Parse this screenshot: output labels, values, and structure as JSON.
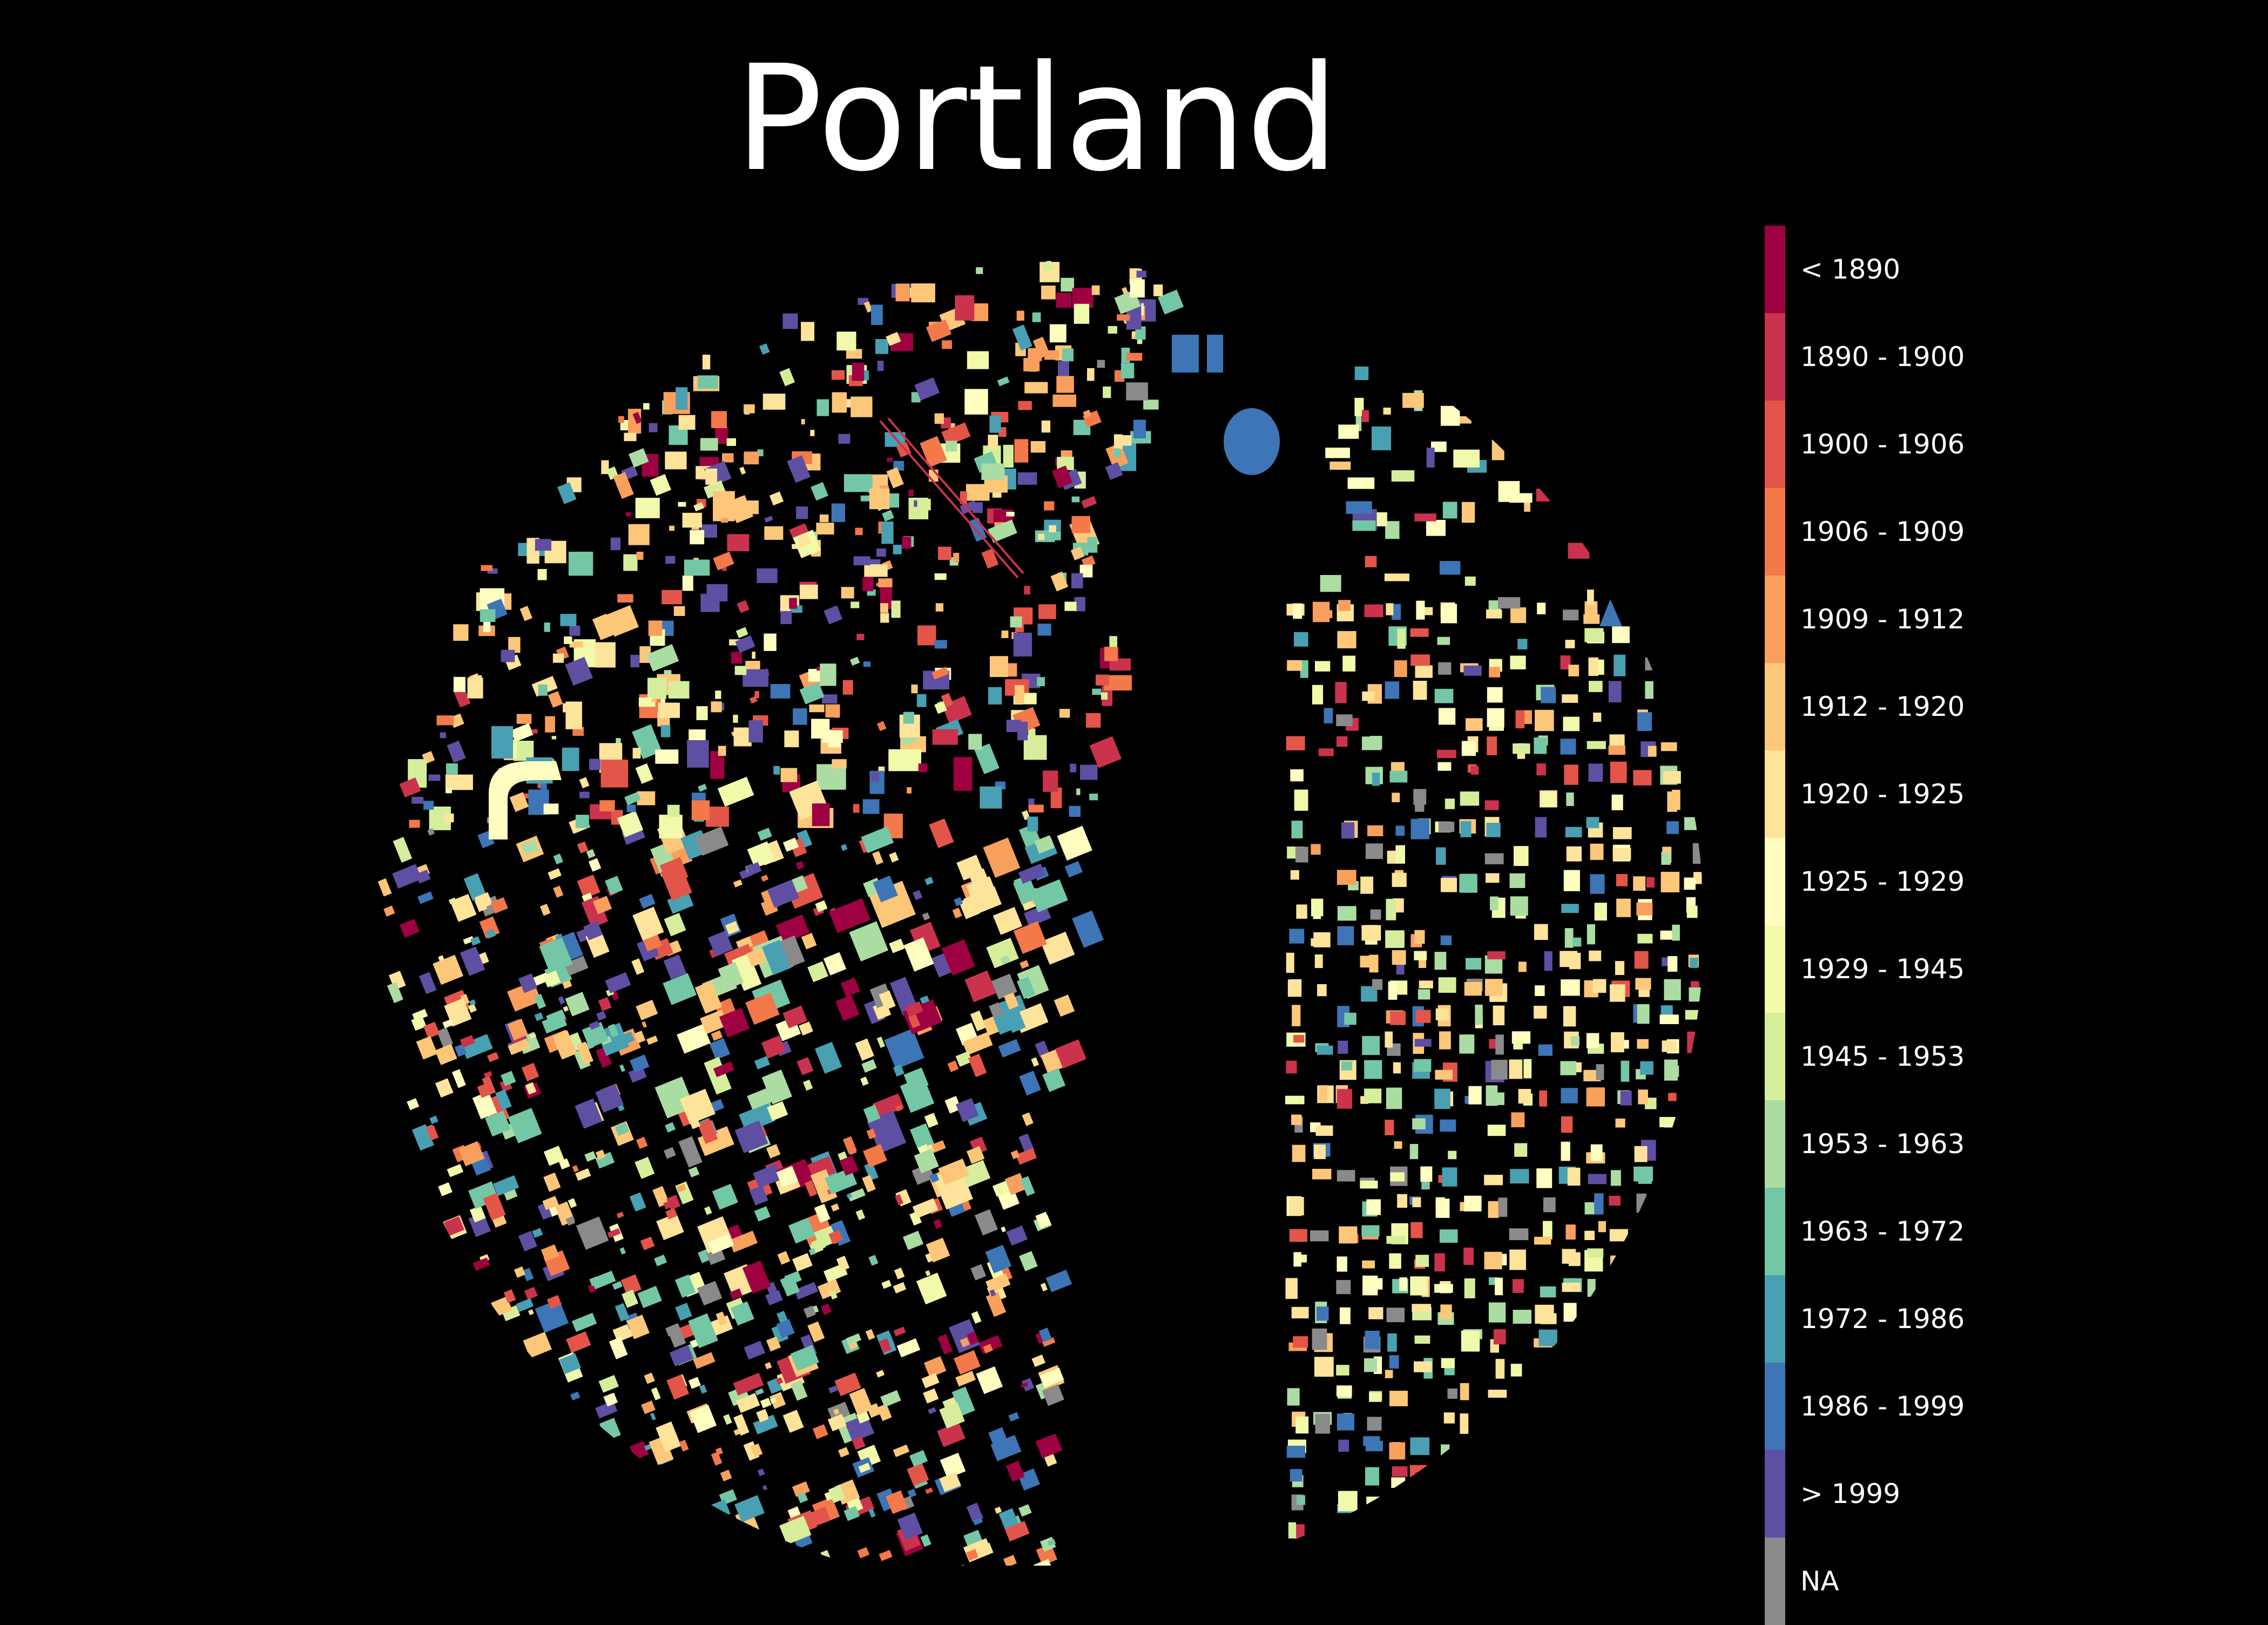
{
  "title": "Portland",
  "map": {
    "background": "#000000",
    "legend_placement": "right",
    "legend": [
      {
        "label": "< 1890",
        "color": "#9e0142"
      },
      {
        "label": "1890 - 1900",
        "color": "#cb334c"
      },
      {
        "label": "1900 - 1906",
        "color": "#e45549"
      },
      {
        "label": "1906 - 1909",
        "color": "#f3784a"
      },
      {
        "label": "1909 - 1912",
        "color": "#f99f5c"
      },
      {
        "label": "1912 - 1920",
        "color": "#fdc779"
      },
      {
        "label": "1920 - 1925",
        "color": "#fee49a"
      },
      {
        "label": "1925 - 1929",
        "color": "#fffdbf"
      },
      {
        "label": "1929 - 1945",
        "color": "#f2f9aa"
      },
      {
        "label": "1945 - 1953",
        "color": "#d6ee9b"
      },
      {
        "label": "1953 - 1963",
        "color": "#abdda3"
      },
      {
        "label": "1963 - 1972",
        "color": "#74c7a5"
      },
      {
        "label": "1972 - 1986",
        "color": "#48a0b2"
      },
      {
        "label": "1986 - 1999",
        "color": "#3d75b6"
      },
      {
        "label": "> 1999",
        "color": "#5e4fa2"
      },
      {
        "label": "NA",
        "color": "#8a8a8a"
      }
    ]
  }
}
